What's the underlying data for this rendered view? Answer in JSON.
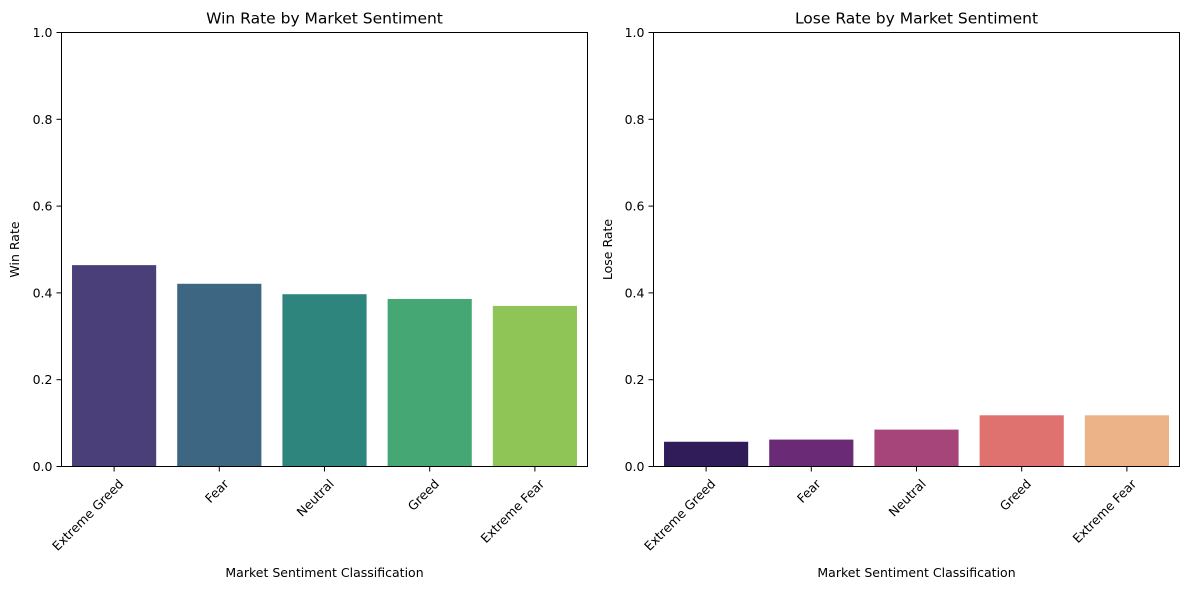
{
  "chart_data": [
    {
      "type": "bar",
      "title": "Win Rate by Market Sentiment",
      "xlabel": "Market Sentiment Classification",
      "ylabel": "Win Rate",
      "categories": [
        "Extreme Greed",
        "Fear",
        "Neutral",
        "Greed",
        "Extreme Fear"
      ],
      "values": [
        0.464,
        0.421,
        0.397,
        0.386,
        0.37
      ],
      "colors": [
        "#4b3f7a",
        "#3c6682",
        "#2e857d",
        "#45a874",
        "#8fc556"
      ],
      "ylim": [
        0,
        1.0
      ],
      "yticks": [
        "0.0",
        "0.2",
        "0.4",
        "0.6",
        "0.8",
        "1.0"
      ],
      "grid": false
    },
    {
      "type": "bar",
      "title": "Lose Rate by Market Sentiment",
      "xlabel": "Market Sentiment Classification",
      "ylabel": "Lose Rate",
      "categories": [
        "Extreme Greed",
        "Fear",
        "Neutral",
        "Greed",
        "Extreme Fear"
      ],
      "values": [
        0.057,
        0.062,
        0.085,
        0.118,
        0.118
      ],
      "colors": [
        "#2f1c59",
        "#6a2a76",
        "#a5457a",
        "#df716f",
        "#ecb288"
      ],
      "ylim": [
        0,
        1.0
      ],
      "yticks": [
        "0.0",
        "0.2",
        "0.4",
        "0.6",
        "0.8",
        "1.0"
      ],
      "grid": false
    }
  ]
}
